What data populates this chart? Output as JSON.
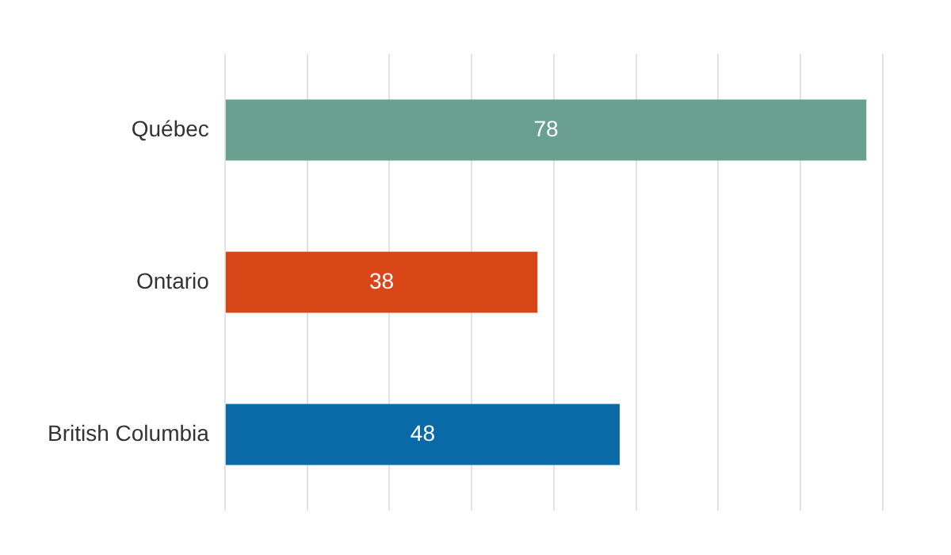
{
  "chart_data": {
    "type": "bar",
    "orientation": "horizontal",
    "categories": [
      "Québec",
      "Ontario",
      "British Columbia"
    ],
    "values": [
      78,
      38,
      48
    ],
    "colors": [
      "#6aa090",
      "#d84516",
      "#0a6aa8"
    ],
    "xlim": [
      0,
      80
    ],
    "xticks": [
      {
        "value": 0,
        "label": null
      },
      {
        "value": 10,
        "label": null
      },
      {
        "value": 20,
        "label": null
      },
      {
        "value": 30,
        "label": null
      },
      {
        "value": 40,
        "label": null
      },
      {
        "value": 50,
        "label": null
      },
      {
        "value": 60,
        "label": null
      },
      {
        "value": 70,
        "label": null
      },
      {
        "value": 80,
        "label": null
      }
    ],
    "grid": "x",
    "tick_labels": "y",
    "data_labels": true,
    "legend": false
  }
}
